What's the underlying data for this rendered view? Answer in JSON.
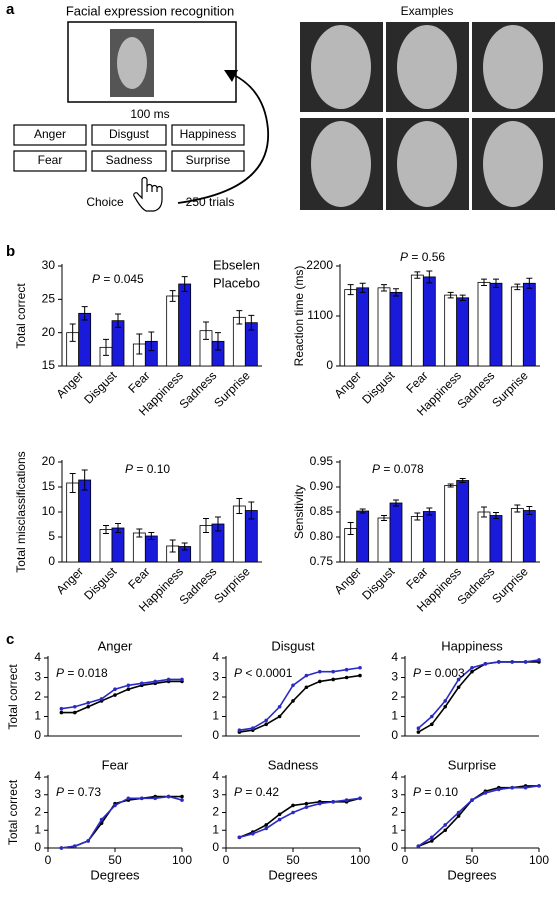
{
  "panels": [
    "a",
    "b",
    "c"
  ],
  "task": {
    "title": "Facial expression recognition",
    "duration": "100 ms",
    "choices": [
      "Anger",
      "Disgust",
      "Happiness",
      "Fear",
      "Sadness",
      "Surprise"
    ],
    "choice": "Choice",
    "trials": "250 trials",
    "examples": "Examples"
  },
  "chart_data": [
    {
      "type": "bar",
      "ylabel": "Total correct",
      "annotation": "P = 0.045",
      "categories": [
        "Anger",
        "Disgust",
        "Fear",
        "Happiness",
        "Sadness",
        "Surprise"
      ],
      "series": [
        {
          "name": "Ebselen",
          "color": "#1a1adb",
          "label_color": "#1a1adb",
          "values": [
            22.9,
            21.8,
            18.7,
            27.3,
            18.7,
            21.5
          ],
          "errors": [
            1.0,
            1.0,
            1.4,
            1.1,
            1.3,
            1.1
          ]
        },
        {
          "name": "Placebo",
          "color": "#ffffff",
          "label_color": "#000000",
          "values": [
            20.0,
            17.8,
            18.3,
            25.5,
            20.3,
            22.3
          ],
          "errors": [
            1.3,
            1.2,
            1.5,
            0.8,
            1.3,
            1.0
          ]
        }
      ],
      "ylim": [
        15,
        30
      ],
      "yticks": [
        15,
        20,
        25,
        30
      ]
    },
    {
      "type": "bar",
      "ylabel": "Reaction time (ms)",
      "annotation": "P = 0.56",
      "categories": [
        "Anger",
        "Disgust",
        "Fear",
        "Happiness",
        "Sadness",
        "Surprise"
      ],
      "series": [
        {
          "color": "#1a1adb",
          "values": [
            1720,
            1620,
            1960,
            1500,
            1820,
            1820
          ],
          "errors": [
            100,
            80,
            130,
            60,
            90,
            110
          ]
        },
        {
          "color": "#ffffff",
          "values": [
            1680,
            1720,
            2000,
            1560,
            1840,
            1740
          ],
          "errors": [
            110,
            70,
            70,
            60,
            70,
            60
          ]
        }
      ],
      "ylim": [
        0,
        2200
      ],
      "yticks": [
        0,
        1100,
        2200
      ]
    },
    {
      "type": "bar",
      "ylabel": "Total misclassifications",
      "annotation": "P = 0.10",
      "categories": [
        "Anger",
        "Disgust",
        "Fear",
        "Happiness",
        "Sadness",
        "Surprise"
      ],
      "series": [
        {
          "color": "#1a1adb",
          "values": [
            16.4,
            6.8,
            5.2,
            3.1,
            7.6,
            10.3
          ],
          "errors": [
            2.0,
            0.9,
            0.7,
            0.7,
            1.4,
            1.7
          ]
        },
        {
          "color": "#ffffff",
          "values": [
            15.8,
            6.5,
            5.8,
            3.2,
            7.3,
            11.2
          ],
          "errors": [
            1.9,
            0.8,
            0.8,
            1.2,
            1.4,
            1.5
          ]
        }
      ],
      "ylim": [
        0,
        20
      ],
      "yticks": [
        0,
        5,
        10,
        15,
        20
      ]
    },
    {
      "type": "bar",
      "ylabel": "Sensitivity",
      "annotation": "P = 0.078",
      "categories": [
        "Anger",
        "Disgust",
        "Fear",
        "Happiness",
        "Sadness",
        "Surprise"
      ],
      "series": [
        {
          "color": "#1a1adb",
          "values": [
            0.852,
            0.868,
            0.851,
            0.913,
            0.843,
            0.853
          ],
          "errors": [
            0.004,
            0.006,
            0.007,
            0.004,
            0.006,
            0.008
          ]
        },
        {
          "color": "#ffffff",
          "values": [
            0.817,
            0.838,
            0.841,
            0.903,
            0.85,
            0.857
          ],
          "errors": [
            0.012,
            0.005,
            0.007,
            0.003,
            0.01,
            0.007
          ]
        }
      ],
      "ylim": [
        0.75,
        0.95
      ],
      "yticks": [
        0.75,
        {
          "value": 0.8,
          "label": "0.80"
        },
        0.85,
        {
          "value": 0.9,
          "label": "0.90"
        },
        0.95
      ]
    },
    {
      "type": "line",
      "title": "Anger",
      "ylabel": "Total correct",
      "annotation": "P = 0.018",
      "x": [
        10,
        20,
        30,
        40,
        50,
        60,
        70,
        80,
        90,
        100
      ],
      "series": [
        {
          "color": "#000000",
          "values": [
            1.2,
            1.2,
            1.5,
            1.8,
            2.1,
            2.4,
            2.6,
            2.7,
            2.8,
            2.8
          ]
        },
        {
          "color": "#2b2bc4",
          "values": [
            1.4,
            1.5,
            1.7,
            1.9,
            2.4,
            2.6,
            2.7,
            2.8,
            2.9,
            2.9
          ]
        }
      ],
      "xlim": [
        0,
        100
      ],
      "ylim": [
        0,
        4
      ],
      "yticks": [
        0,
        1,
        2,
        3,
        4
      ]
    },
    {
      "type": "line",
      "title": "Disgust",
      "annotation": "P < 0.0001",
      "x": [
        10,
        20,
        30,
        40,
        50,
        60,
        70,
        80,
        90,
        100
      ],
      "series": [
        {
          "color": "#000000",
          "values": [
            0.2,
            0.3,
            0.6,
            1.0,
            1.8,
            2.5,
            2.8,
            2.9,
            3.0,
            3.1
          ]
        },
        {
          "color": "#2b2bc4",
          "values": [
            0.3,
            0.4,
            0.8,
            1.5,
            2.6,
            3.1,
            3.3,
            3.3,
            3.4,
            3.5
          ]
        }
      ],
      "xlim": [
        0,
        100
      ],
      "ylim": [
        0,
        4
      ],
      "yticks": [
        0,
        1,
        2,
        3,
        4
      ]
    },
    {
      "type": "line",
      "title": "Happiness",
      "annotation": "P = 0.003",
      "x": [
        10,
        20,
        30,
        40,
        50,
        60,
        70,
        80,
        90,
        100
      ],
      "series": [
        {
          "color": "#000000",
          "values": [
            0.2,
            0.6,
            1.5,
            2.5,
            3.3,
            3.7,
            3.8,
            3.8,
            3.8,
            3.8
          ]
        },
        {
          "color": "#2b2bc4",
          "values": [
            0.4,
            1.0,
            1.8,
            2.9,
            3.5,
            3.7,
            3.8,
            3.8,
            3.8,
            3.9
          ]
        }
      ],
      "xlim": [
        0,
        100
      ],
      "ylim": [
        0,
        4
      ],
      "yticks": [
        0,
        1,
        2,
        3,
        4
      ]
    },
    {
      "type": "line",
      "title": "Fear",
      "ylabel": "Total correct",
      "xlabel": "Degrees",
      "annotation": "P = 0.73",
      "x": [
        10,
        20,
        30,
        40,
        50,
        60,
        70,
        80,
        90,
        100
      ],
      "series": [
        {
          "color": "#000000",
          "values": [
            0.0,
            0.1,
            0.4,
            1.4,
            2.5,
            2.7,
            2.8,
            2.9,
            2.9,
            2.9
          ]
        },
        {
          "color": "#2b2bc4",
          "values": [
            0.0,
            0.1,
            0.4,
            1.6,
            2.4,
            2.8,
            2.8,
            2.8,
            2.9,
            2.7
          ]
        }
      ],
      "xlim": [
        0,
        100
      ],
      "xticks": [
        0,
        50,
        100
      ],
      "ylim": [
        0,
        4
      ],
      "yticks": [
        0,
        1,
        2,
        3,
        4
      ]
    },
    {
      "type": "line",
      "title": "Sadness",
      "xlabel": "Degrees",
      "annotation": "P = 0.42",
      "x": [
        10,
        20,
        30,
        40,
        50,
        60,
        70,
        80,
        90,
        100
      ],
      "series": [
        {
          "color": "#000000",
          "values": [
            0.6,
            0.9,
            1.3,
            1.9,
            2.4,
            2.5,
            2.6,
            2.6,
            2.6,
            2.8
          ]
        },
        {
          "color": "#2b2bc4",
          "values": [
            0.6,
            0.8,
            1.1,
            1.6,
            2.0,
            2.3,
            2.5,
            2.6,
            2.7,
            2.8
          ]
        }
      ],
      "xlim": [
        0,
        100
      ],
      "xticks": [
        0,
        50,
        100
      ],
      "ylim": [
        0,
        4
      ],
      "yticks": [
        0,
        1,
        2,
        3,
        4
      ]
    },
    {
      "type": "line",
      "title": "Surprise",
      "xlabel": "Degrees",
      "annotation": "P = 0.10",
      "x": [
        10,
        20,
        30,
        40,
        50,
        60,
        70,
        80,
        90,
        100
      ],
      "series": [
        {
          "color": "#000000",
          "values": [
            0.1,
            0.4,
            1.0,
            1.8,
            2.7,
            3.2,
            3.4,
            3.4,
            3.5,
            3.5
          ]
        },
        {
          "color": "#2b2bc4",
          "values": [
            0.1,
            0.6,
            1.3,
            2.0,
            2.7,
            3.1,
            3.3,
            3.4,
            3.4,
            3.5
          ]
        }
      ],
      "xlim": [
        0,
        100
      ],
      "xticks": [
        0,
        50,
        100
      ],
      "ylim": [
        0,
        4
      ],
      "yticks": [
        0,
        1,
        2,
        3,
        4
      ]
    }
  ]
}
